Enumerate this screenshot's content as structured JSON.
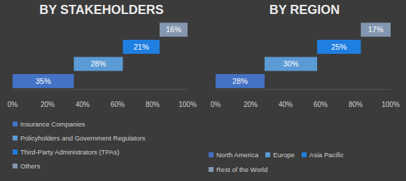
{
  "chart_data": [
    {
      "type": "waterfall",
      "title": "BY STAKEHOLDERS",
      "orientation": "horizontal",
      "categories": [
        "Insurance Companies",
        "Policyholders and Government Regulators",
        "Third-Party Administrators (TPAs)",
        "Others"
      ],
      "values": [
        35,
        28,
        21,
        16
      ],
      "value_labels": [
        "35%",
        "28%",
        "21%",
        "16%"
      ],
      "colors": [
        "#4472c4",
        "#5b9bd5",
        "#1f7fe0",
        "#8497b0"
      ],
      "xlim": [
        0,
        100
      ],
      "xticks": [
        {
          "value": 0,
          "label": "0%"
        },
        {
          "value": 20,
          "label": "20%"
        },
        {
          "value": 40,
          "label": "40%"
        },
        {
          "value": 60,
          "label": "60%"
        },
        {
          "value": 80,
          "label": "80%"
        },
        {
          "value": 100,
          "label": "100%"
        }
      ],
      "data_labels": true,
      "tick_labels": "x",
      "grid": false,
      "legend": "bottom"
    },
    {
      "type": "waterfall",
      "title": "BY REGION",
      "orientation": "horizontal",
      "categories": [
        "North America",
        "Europe",
        "Asia Pacific",
        "Rest of the World"
      ],
      "values": [
        28,
        30,
        25,
        17
      ],
      "value_labels": [
        "28%",
        "30%",
        "25%",
        "17%"
      ],
      "colors": [
        "#4472c4",
        "#5b9bd5",
        "#1f7fe0",
        "#8497b0"
      ],
      "xlim": [
        0,
        100
      ],
      "xticks": [
        {
          "value": 0,
          "label": "0%"
        },
        {
          "value": 20,
          "label": "20%"
        },
        {
          "value": 40,
          "label": "40%"
        },
        {
          "value": 60,
          "label": "60%"
        },
        {
          "value": 80,
          "label": "80%"
        },
        {
          "value": 100,
          "label": "100%"
        }
      ],
      "data_labels": true,
      "tick_labels": "x",
      "grid": false,
      "legend": "bottom"
    }
  ]
}
